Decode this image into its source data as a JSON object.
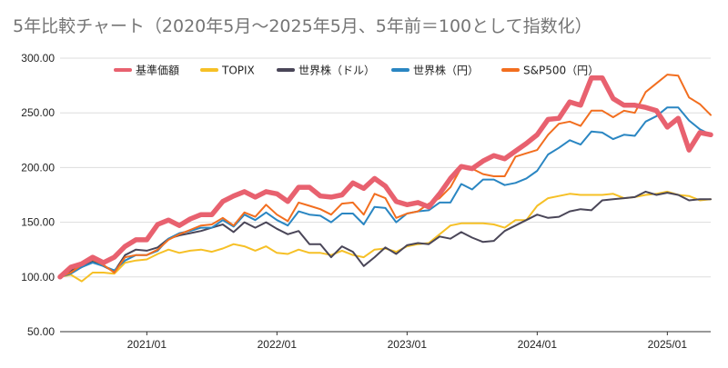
{
  "chart_data": {
    "type": "line",
    "title": "5年比較チャート（2020年5月〜2025年5月、5年前＝100として指数化）",
    "xlabel": "",
    "ylabel": "",
    "ylim": [
      50,
      300
    ],
    "yticks": [
      "50.00",
      "100.00",
      "150.00",
      "200.00",
      "250.00",
      "300.00"
    ],
    "xticks": [
      "2021/01",
      "2022/01",
      "2023/01",
      "2024/01",
      "2025/01"
    ],
    "grid": "horizontal",
    "legend_position": "top",
    "x": [
      "2020/05",
      "2020/06",
      "2020/07",
      "2020/08",
      "2020/09",
      "2020/10",
      "2020/11",
      "2020/12",
      "2021/01",
      "2021/02",
      "2021/03",
      "2021/04",
      "2021/05",
      "2021/06",
      "2021/07",
      "2021/08",
      "2021/09",
      "2021/10",
      "2021/11",
      "2021/12",
      "2022/01",
      "2022/02",
      "2022/03",
      "2022/04",
      "2022/05",
      "2022/06",
      "2022/07",
      "2022/08",
      "2022/09",
      "2022/10",
      "2022/11",
      "2022/12",
      "2023/01",
      "2023/02",
      "2023/03",
      "2023/04",
      "2023/05",
      "2023/06",
      "2023/07",
      "2023/08",
      "2023/09",
      "2023/10",
      "2023/11",
      "2023/12",
      "2024/01",
      "2024/02",
      "2024/03",
      "2024/04",
      "2024/05",
      "2024/06",
      "2024/07",
      "2024/08",
      "2024/09",
      "2024/10",
      "2024/11",
      "2024/12",
      "2025/01",
      "2025/02",
      "2025/03",
      "2025/04",
      "2025/05"
    ],
    "series": [
      {
        "name": "基準価額",
        "color": "#e8616f",
        "width": 5.5,
        "values": [
          100,
          109,
          112,
          118,
          113,
          118,
          128,
          134,
          134,
          148,
          152,
          147,
          153,
          157,
          157,
          169,
          174,
          178,
          173,
          178,
          176,
          169,
          182,
          182,
          174,
          173,
          175,
          186,
          181,
          190,
          183,
          169,
          166,
          168,
          164,
          176,
          190,
          201,
          199,
          206,
          211,
          208,
          215,
          222,
          230,
          244,
          245,
          260,
          257,
          282,
          282,
          263,
          257,
          257,
          255,
          252,
          237,
          245,
          216,
          232,
          230
        ]
      },
      {
        "name": "TOPIX",
        "color": "#f6c026",
        "width": 2,
        "values": [
          100,
          102,
          96,
          104,
          104,
          103,
          113,
          115,
          116,
          121,
          125,
          122,
          124,
          125,
          123,
          126,
          130,
          128,
          124,
          128,
          122,
          121,
          125,
          122,
          122,
          120,
          124,
          120,
          118,
          125,
          126,
          123,
          128,
          130,
          131,
          139,
          147,
          149,
          149,
          149,
          148,
          145,
          152,
          152,
          165,
          172,
          174,
          176,
          175,
          175,
          175,
          176,
          172,
          173,
          175,
          176,
          178,
          175,
          174,
          170,
          171
        ]
      },
      {
        "name": "世界株（ドル）",
        "color": "#4a4658",
        "width": 2,
        "values": [
          100,
          106,
          109,
          114,
          110,
          105,
          120,
          125,
          124,
          127,
          135,
          138,
          140,
          142,
          145,
          148,
          141,
          150,
          145,
          150,
          144,
          139,
          142,
          130,
          130,
          118,
          128,
          123,
          110,
          118,
          127,
          121,
          129,
          131,
          130,
          137,
          135,
          141,
          136,
          132,
          133,
          142,
          147,
          152,
          157,
          154,
          155,
          160,
          162,
          161,
          170,
          171,
          172,
          173,
          178,
          175,
          177,
          175,
          170,
          171,
          171
        ]
      },
      {
        "name": "世界株（円）",
        "color": "#2a86c2",
        "width": 2,
        "values": [
          100,
          103,
          109,
          113,
          110,
          106,
          115,
          120,
          120,
          124,
          135,
          140,
          142,
          145,
          145,
          152,
          146,
          157,
          152,
          159,
          152,
          147,
          160,
          157,
          156,
          150,
          158,
          158,
          148,
          164,
          163,
          150,
          158,
          160,
          161,
          168,
          168,
          185,
          180,
          189,
          189,
          184,
          186,
          190,
          197,
          212,
          218,
          225,
          221,
          233,
          232,
          226,
          230,
          229,
          242,
          247,
          255,
          255,
          243,
          235,
          230
        ]
      },
      {
        "name": "S&P500（円）",
        "color": "#f26e1f",
        "width": 2,
        "values": [
          100,
          104,
          111,
          116,
          111,
          104,
          118,
          120,
          120,
          125,
          134,
          139,
          143,
          147,
          148,
          154,
          147,
          159,
          155,
          166,
          157,
          151,
          168,
          165,
          162,
          157,
          167,
          168,
          157,
          176,
          172,
          154,
          158,
          160,
          167,
          172,
          182,
          200,
          199,
          194,
          192,
          192,
          210,
          213,
          216,
          230,
          240,
          242,
          238,
          252,
          252,
          246,
          252,
          250,
          269,
          277,
          285,
          284,
          264,
          258,
          248
        ]
      }
    ]
  }
}
